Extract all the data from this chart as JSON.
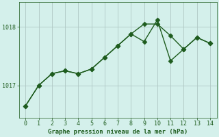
{
  "line1_x": [
    0,
    1,
    2,
    3,
    4,
    5,
    6,
    7,
    8,
    9,
    10,
    11,
    12,
    13,
    14
  ],
  "line1_y": [
    1016.65,
    1017.0,
    1017.2,
    1017.25,
    1017.2,
    1017.28,
    1017.48,
    1017.68,
    1017.88,
    1018.05,
    1018.05,
    1017.85,
    1017.62,
    1017.82,
    1017.72
  ],
  "line2_x": [
    0,
    1,
    2,
    3,
    4,
    5,
    6,
    7,
    8,
    9,
    10,
    11,
    12,
    13,
    14
  ],
  "line2_y": [
    1016.65,
    1017.0,
    1017.2,
    1017.25,
    1017.2,
    1017.28,
    1017.48,
    1017.68,
    1017.88,
    1017.75,
    1018.12,
    1017.42,
    1017.62,
    1017.82,
    1017.72
  ],
  "yticks": [
    1017,
    1018
  ],
  "xticks": [
    0,
    1,
    2,
    3,
    4,
    5,
    6,
    7,
    8,
    9,
    10,
    11,
    12,
    13,
    14
  ],
  "xlabel": "Graphe pression niveau de la mer (hPa)",
  "ylim": [
    1016.45,
    1018.42
  ],
  "xlim": [
    -0.5,
    14.5
  ],
  "bg_color": "#d4f0eb",
  "line_color": "#1e5c1e",
  "grid_color": "#b0c8c4",
  "markersize": 3.5,
  "linewidth": 1.0,
  "figsize": [
    3.2,
    2.0
  ],
  "dpi": 100
}
